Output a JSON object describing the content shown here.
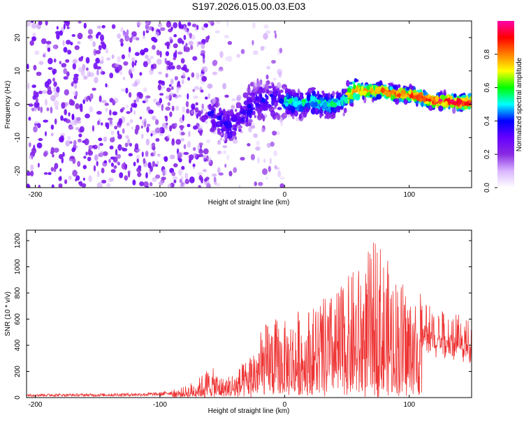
{
  "title": "S197.2026.015.00.03.E03",
  "chart_data": [
    {
      "type": "heatmap",
      "title": "S197.2026.015.00.03.E03",
      "xlabel": "Height of straight line (km)",
      "ylabel": "Frequency (Hz)",
      "xlim": [
        -207,
        150
      ],
      "ylim": [
        -25,
        25
      ],
      "xticks": [
        -200,
        -100,
        0,
        100
      ],
      "xtick_labels": [
        "-200",
        "-100",
        "0",
        "100"
      ],
      "yticks": [
        -20,
        -10,
        0,
        10,
        20
      ],
      "ytick_labels": [
        "-20",
        "-10",
        "0",
        "10",
        "20"
      ],
      "colorbar": {
        "label": "Normalized spectral amplitude",
        "range": [
          0,
          1
        ],
        "ticks": [
          0.0,
          0.2,
          0.4,
          0.6,
          0.8
        ],
        "tick_labels": [
          "0.0",
          "0.2",
          "0.4",
          "0.6",
          "0.8"
        ],
        "colors": [
          "#ffffff",
          "#d9b6ff",
          "#8a2be2",
          "#6600ff",
          "#0000ff",
          "#00ffff",
          "#00ff00",
          "#ffff00",
          "#ff8000",
          "#ff0000",
          "#ff00aa"
        ]
      },
      "ridge": {
        "x": [
          -60,
          -45,
          -35,
          -20,
          -10,
          0,
          10,
          20,
          30,
          40,
          50,
          55,
          60,
          70,
          80,
          90,
          100,
          110,
          120,
          130,
          140,
          150
        ],
        "frequency": [
          -2,
          -7,
          -3,
          1,
          2,
          1,
          0,
          1,
          0,
          0,
          2,
          4,
          4,
          4,
          4,
          3,
          3,
          2,
          1,
          1,
          0.5,
          0.5
        ]
      }
    },
    {
      "type": "line",
      "xlabel": "Height of straight line (km)",
      "ylabel": "SNR (10 * v/v)",
      "xlim": [
        -207,
        150
      ],
      "ylim": [
        0,
        1280
      ],
      "xticks": [
        -200,
        -100,
        0,
        100
      ],
      "xtick_labels": [
        "-200",
        "-100",
        "0",
        "100"
      ],
      "yticks": [
        0,
        200,
        400,
        600,
        800,
        1000,
        1200
      ],
      "ytick_labels": [
        "0",
        "200",
        "400",
        "600",
        "800",
        "1000",
        "1200"
      ],
      "color": "#ee3333",
      "envelope": {
        "x": [
          -207,
          -150,
          -100,
          -80,
          -70,
          -60,
          -50,
          -40,
          -30,
          -20,
          -10,
          0,
          10,
          20,
          30,
          40,
          50,
          60,
          70,
          75,
          80,
          90,
          100,
          110,
          120,
          130,
          140,
          150
        ],
        "y": [
          30,
          30,
          40,
          80,
          140,
          230,
          150,
          190,
          280,
          500,
          600,
          560,
          640,
          690,
          750,
          790,
          900,
          980,
          1100,
          1280,
          1020,
          920,
          820,
          760,
          680,
          640,
          620,
          560
        ]
      }
    }
  ]
}
